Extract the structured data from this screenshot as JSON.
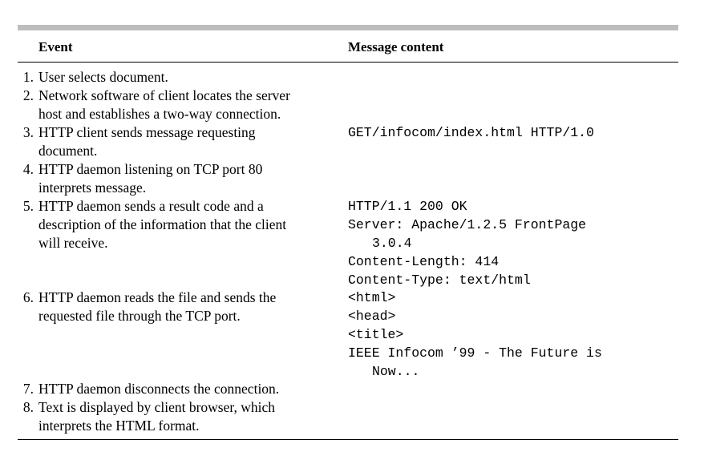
{
  "table": {
    "headers": {
      "event": "Event",
      "message": "Message content"
    },
    "rows": [
      {
        "num": "1.",
        "event_lines": [
          "User selects document."
        ],
        "message_lines": []
      },
      {
        "num": "2.",
        "event_lines": [
          "Network software of client locates the server",
          "host and establishes a two-way connection."
        ],
        "message_lines": []
      },
      {
        "num": "3.",
        "event_lines": [
          "HTTP client sends message requesting",
          "document."
        ],
        "message_lines": [
          "GET/infocom/index.html HTTP/1.0"
        ]
      },
      {
        "num": "4.",
        "event_lines": [
          "HTTP daemon listening on TCP port 80",
          "interprets message."
        ],
        "message_lines": []
      },
      {
        "num": "5.",
        "event_lines": [
          "HTTP daemon sends a result code and a",
          "description of the information that the client",
          "will receive."
        ],
        "message_lines": [
          "HTTP/1.1 200 OK",
          "Server: Apache/1.2.5 FrontPage",
          "3.0.4",
          "Content-Length: 414",
          "Content-Type: text/html"
        ]
      },
      {
        "num": "6.",
        "event_lines": [
          "HTTP daemon reads the file and sends the",
          "requested file through the TCP port."
        ],
        "message_lines": [
          "<html>",
          "<head>",
          "<title>",
          "IEEE Infocom ’99 - The Future is",
          "Now..."
        ]
      },
      {
        "num": "7.",
        "event_lines": [
          "HTTP daemon disconnects the connection."
        ],
        "message_lines": []
      },
      {
        "num": "8.",
        "event_lines": [
          "Text is displayed by client browser, which",
          "interprets the HTML format."
        ],
        "message_lines": []
      }
    ]
  }
}
